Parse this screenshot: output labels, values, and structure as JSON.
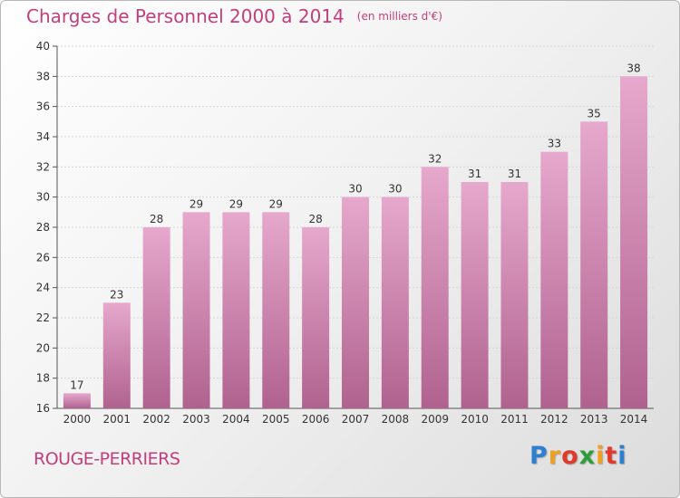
{
  "title": "Charges de Personnel 2000 à 2014",
  "title_unit": "(en milliers d'€)",
  "commune": "ROUGE-PERRIERS",
  "logo": {
    "letters": [
      "P",
      "r",
      "o",
      "x",
      "i",
      "t",
      "i"
    ],
    "colors": [
      "#2f7fd0",
      "#f0a020",
      "#e03a2a",
      "#2f9e3a",
      "#f0a020",
      "#e03a2a",
      "#2f7fd0"
    ]
  },
  "colors": {
    "bar_top": "#e6a8cc",
    "bar_bottom": "#b0628f",
    "accent": "#c13f7c"
  },
  "chart_data": {
    "type": "bar",
    "title": "Charges de Personnel 2000 à 2014",
    "subtitle": "(en milliers d'€)",
    "categories": [
      "2000",
      "2001",
      "2002",
      "2003",
      "2004",
      "2005",
      "2006",
      "2007",
      "2008",
      "2009",
      "2010",
      "2011",
      "2012",
      "2013",
      "2014"
    ],
    "values": [
      17,
      23,
      28,
      29,
      29,
      29,
      28,
      30,
      30,
      32,
      31,
      31,
      33,
      35,
      38
    ],
    "ylim": [
      16,
      40
    ],
    "yticks": [
      16,
      18,
      20,
      22,
      24,
      26,
      28,
      30,
      32,
      34,
      36,
      38,
      40
    ],
    "grid": true,
    "legend": "none",
    "data_labels": true
  }
}
